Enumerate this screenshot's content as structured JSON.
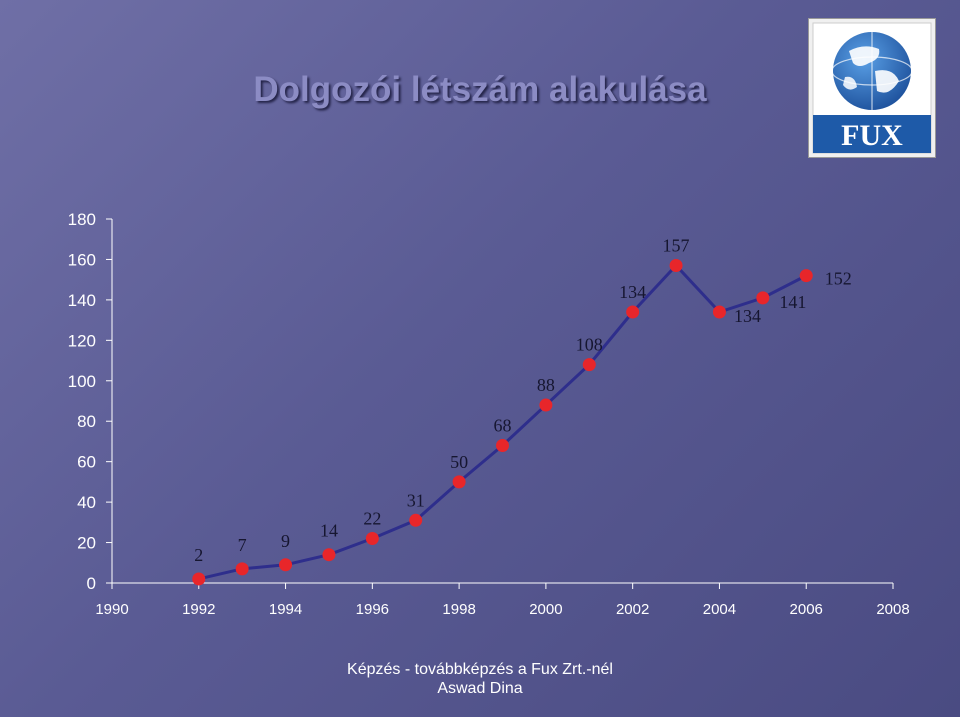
{
  "slide": {
    "title": "Dolgozói létszám alakulása",
    "footer_line1": "Képzés - továbbképzés a Fux Zrt.-nél",
    "footer_line2": "Aswad Dina"
  },
  "logo": {
    "text": "FUX",
    "icon": "globe-logo-icon"
  },
  "colors": {
    "line": "#2e2e8c",
    "marker": "#e8262a",
    "axis": "#ffffff"
  },
  "chart_data": {
    "type": "line",
    "x": [
      1992,
      1993,
      1994,
      1995,
      1996,
      1997,
      1998,
      1999,
      2000,
      2001,
      2002,
      2003,
      2004,
      2005,
      2006
    ],
    "values": [
      2,
      7,
      9,
      14,
      22,
      31,
      50,
      68,
      88,
      108,
      134,
      157,
      134,
      141,
      152
    ],
    "data_labels": [
      "2",
      "7",
      "9",
      "14",
      "22",
      "31",
      "50",
      "68",
      "88",
      "108",
      "134",
      "157",
      "134",
      "141",
      "152"
    ],
    "xlim": [
      1990,
      2008
    ],
    "ylim": [
      0,
      180
    ],
    "x_ticks": [
      "1990",
      "1992",
      "1994",
      "1996",
      "1998",
      "2000",
      "2002",
      "2004",
      "2006",
      "2008"
    ],
    "y_ticks": [
      "0",
      "20",
      "40",
      "60",
      "80",
      "100",
      "120",
      "140",
      "160",
      "180"
    ],
    "grid": false,
    "legend": "none"
  }
}
